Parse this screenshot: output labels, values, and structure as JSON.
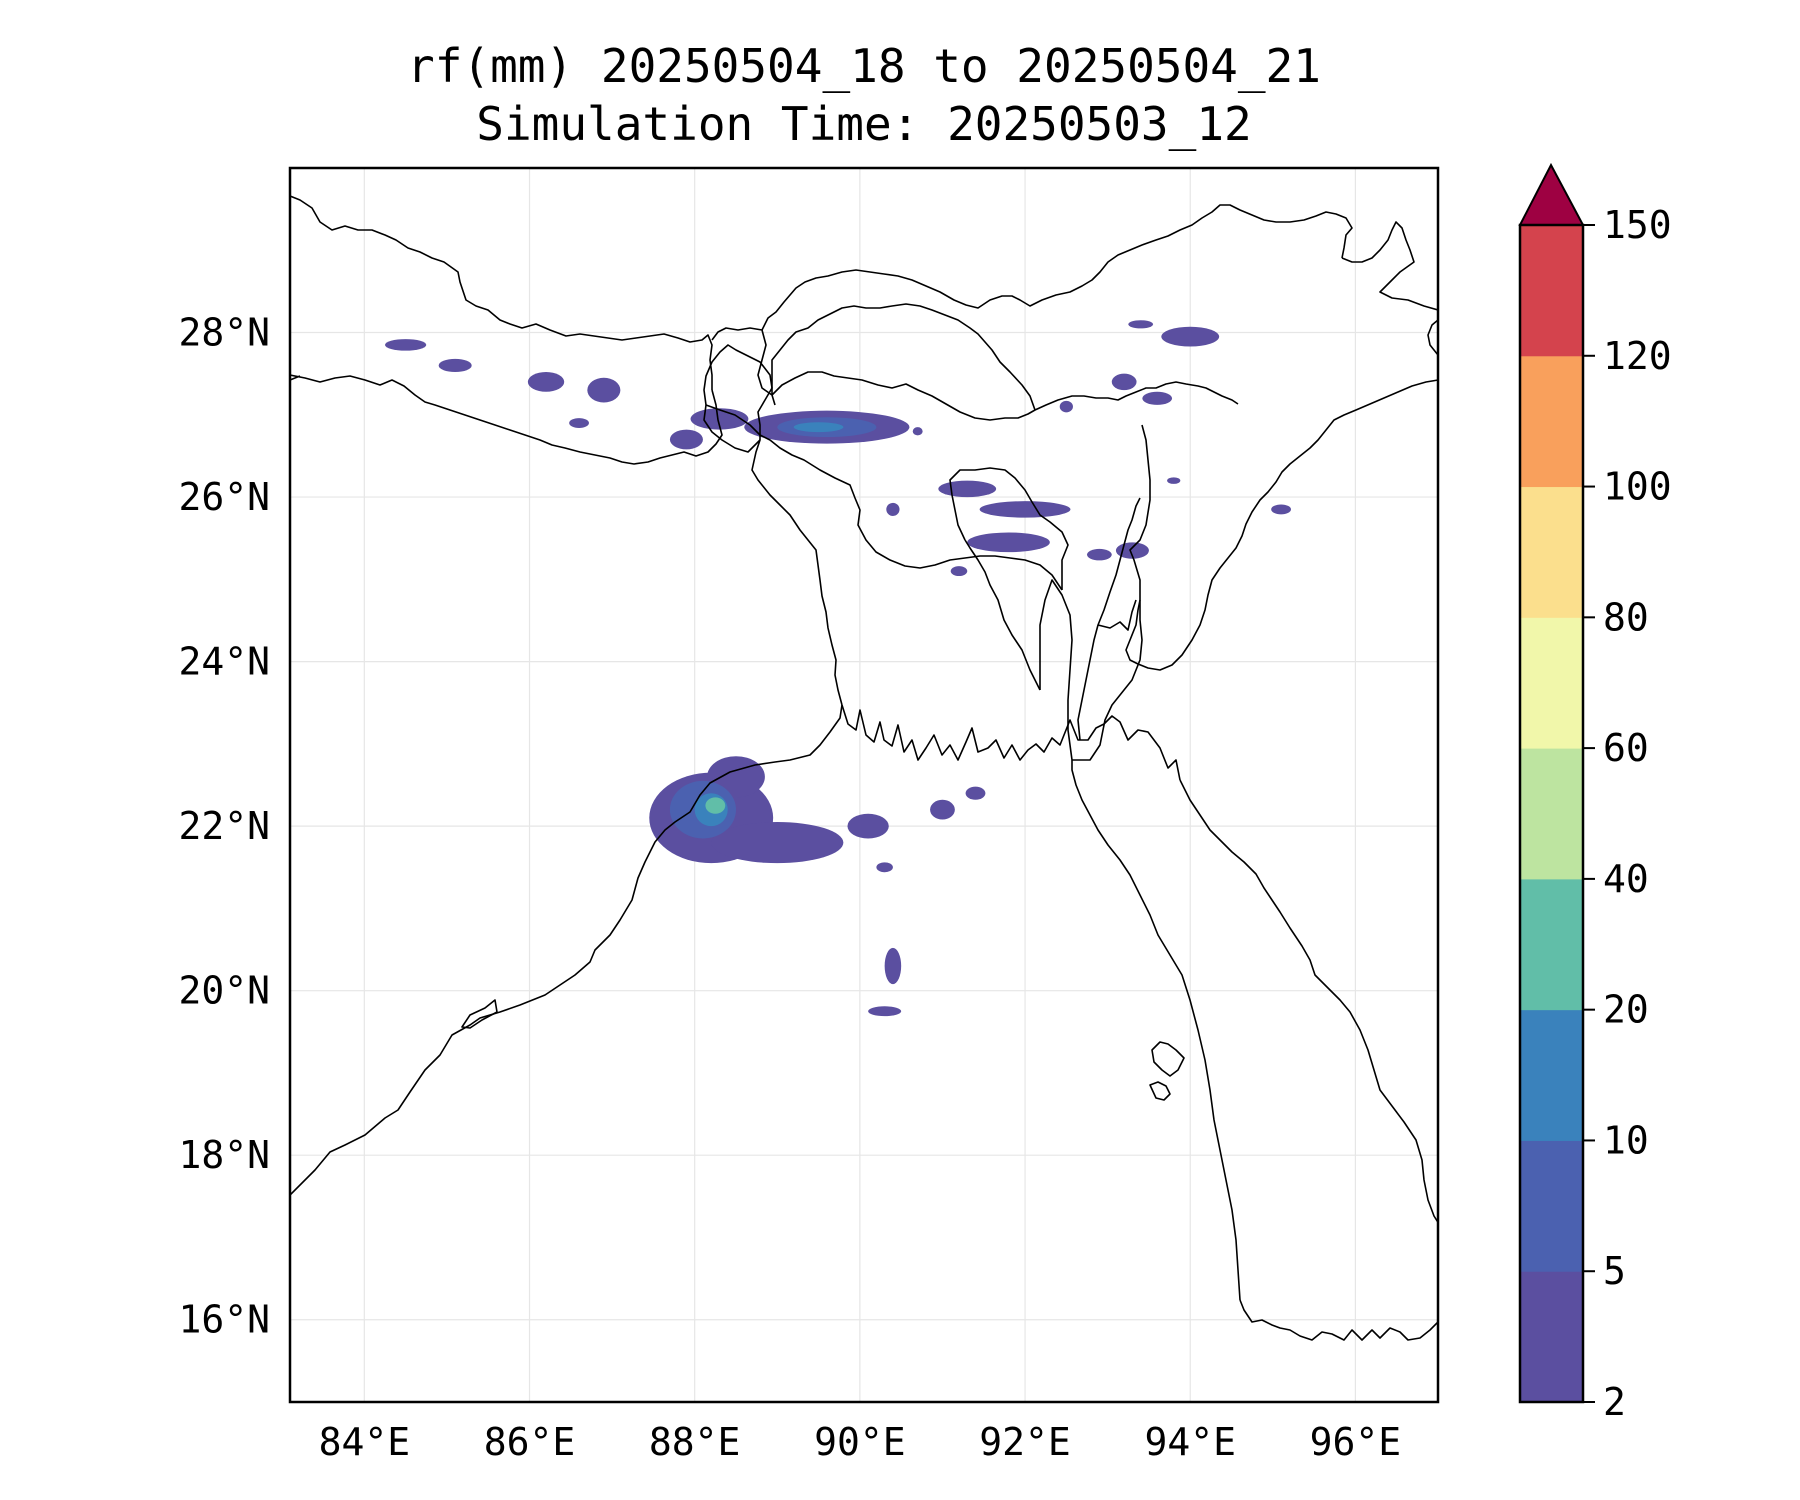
{
  "map": {
    "title": "rf(mm) 20250504_18 to 20250504_21",
    "subtitle": "Simulation Time: 20250503_12",
    "lon_range": [
      83.1,
      97.0
    ],
    "lat_range": [
      15.0,
      30.0
    ],
    "lon_ticks": [
      {
        "value": 84,
        "label": "84°E"
      },
      {
        "value": 86,
        "label": "86°E"
      },
      {
        "value": 88,
        "label": "88°E"
      },
      {
        "value": 90,
        "label": "90°E"
      },
      {
        "value": 92,
        "label": "92°E"
      },
      {
        "value": 94,
        "label": "94°E"
      },
      {
        "value": 96,
        "label": "96°E"
      }
    ],
    "lat_ticks": [
      {
        "value": 16,
        "label": "16°N"
      },
      {
        "value": 18,
        "label": "18°N"
      },
      {
        "value": 20,
        "label": "20°N"
      },
      {
        "value": 22,
        "label": "22°N"
      },
      {
        "value": 24,
        "label": "24°N"
      },
      {
        "value": 26,
        "label": "26°N"
      },
      {
        "value": 28,
        "label": "28°N"
      }
    ],
    "gridlines": true
  },
  "colorbar": {
    "levels": [
      2,
      5,
      10,
      20,
      40,
      60,
      80,
      100,
      120,
      150
    ],
    "tick_labels": [
      "2",
      "5",
      "10",
      "20",
      "40",
      "60",
      "80",
      "100",
      "120",
      "150"
    ],
    "colors": [
      "#5b4fa0",
      "#4b61b0",
      "#3a82bc",
      "#61bea8",
      "#bde4a0",
      "#f1f7aa",
      "#fbdf8d",
      "#f9a05c",
      "#d4434d"
    ],
    "extend_color": "#9e0142",
    "extend": "max",
    "orientation": "vertical",
    "placement": "right"
  },
  "colors": {
    "coastline": "#000000",
    "grid": "#e6e6e6"
  },
  "rain_cells": [
    {
      "lon": 88.2,
      "lat": 22.1,
      "level": 0,
      "rlon": 0.75,
      "rlat": 0.55
    },
    {
      "lon": 89.0,
      "lat": 21.8,
      "level": 0,
      "rlon": 0.8,
      "rlat": 0.25
    },
    {
      "lon": 88.5,
      "lat": 22.6,
      "level": 0,
      "rlon": 0.35,
      "rlat": 0.25
    },
    {
      "lon": 88.1,
      "lat": 22.2,
      "level": 1,
      "rlon": 0.4,
      "rlat": 0.35
    },
    {
      "lon": 88.2,
      "lat": 22.2,
      "level": 2,
      "rlon": 0.2,
      "rlat": 0.2
    },
    {
      "lon": 88.25,
      "lat": 22.25,
      "level": 3,
      "rlon": 0.12,
      "rlat": 0.1
    },
    {
      "lon": 90.1,
      "lat": 22.0,
      "level": 0,
      "rlon": 0.25,
      "rlat": 0.15
    },
    {
      "lon": 91.0,
      "lat": 22.2,
      "level": 0,
      "rlon": 0.15,
      "rlat": 0.12
    },
    {
      "lon": 91.4,
      "lat": 22.4,
      "level": 0,
      "rlon": 0.12,
      "rlat": 0.08
    },
    {
      "lon": 90.4,
      "lat": 20.3,
      "level": 0,
      "rlon": 0.1,
      "rlat": 0.22
    },
    {
      "lon": 90.3,
      "lat": 19.75,
      "level": 0,
      "rlon": 0.2,
      "rlat": 0.06
    },
    {
      "lon": 90.3,
      "lat": 21.5,
      "level": 0,
      "rlon": 0.1,
      "rlat": 0.06
    },
    {
      "lon": 89.6,
      "lat": 26.85,
      "level": 0,
      "rlon": 1.0,
      "rlat": 0.2
    },
    {
      "lon": 89.6,
      "lat": 26.85,
      "level": 1,
      "rlon": 0.6,
      "rlat": 0.12
    },
    {
      "lon": 89.5,
      "lat": 26.85,
      "level": 2,
      "rlon": 0.3,
      "rlat": 0.06
    },
    {
      "lon": 88.3,
      "lat": 26.95,
      "level": 0,
      "rlon": 0.35,
      "rlat": 0.13
    },
    {
      "lon": 87.9,
      "lat": 26.7,
      "level": 0,
      "rlon": 0.2,
      "rlat": 0.12
    },
    {
      "lon": 86.9,
      "lat": 27.3,
      "level": 0,
      "rlon": 0.2,
      "rlat": 0.15
    },
    {
      "lon": 86.2,
      "lat": 27.4,
      "level": 0,
      "rlon": 0.22,
      "rlat": 0.12
    },
    {
      "lon": 85.1,
      "lat": 27.6,
      "level": 0,
      "rlon": 0.2,
      "rlat": 0.08
    },
    {
      "lon": 84.5,
      "lat": 27.85,
      "level": 0,
      "rlon": 0.25,
      "rlat": 0.07
    },
    {
      "lon": 86.6,
      "lat": 26.9,
      "level": 0,
      "rlon": 0.12,
      "rlat": 0.06
    },
    {
      "lon": 91.3,
      "lat": 26.1,
      "level": 0,
      "rlon": 0.35,
      "rlat": 0.1
    },
    {
      "lon": 92.0,
      "lat": 25.85,
      "level": 0,
      "rlon": 0.55,
      "rlat": 0.1
    },
    {
      "lon": 91.8,
      "lat": 25.45,
      "level": 0,
      "rlon": 0.5,
      "rlat": 0.12
    },
    {
      "lon": 92.9,
      "lat": 25.3,
      "level": 0,
      "rlon": 0.15,
      "rlat": 0.07
    },
    {
      "lon": 93.3,
      "lat": 25.35,
      "level": 0,
      "rlon": 0.2,
      "rlat": 0.1
    },
    {
      "lon": 90.4,
      "lat": 25.85,
      "level": 0,
      "rlon": 0.08,
      "rlat": 0.08
    },
    {
      "lon": 91.2,
      "lat": 25.1,
      "level": 0,
      "rlon": 0.1,
      "rlat": 0.06
    },
    {
      "lon": 94.0,
      "lat": 27.95,
      "level": 0,
      "rlon": 0.35,
      "rlat": 0.12
    },
    {
      "lon": 93.2,
      "lat": 27.4,
      "level": 0,
      "rlon": 0.15,
      "rlat": 0.1
    },
    {
      "lon": 93.6,
      "lat": 27.2,
      "level": 0,
      "rlon": 0.18,
      "rlat": 0.08
    },
    {
      "lon": 93.4,
      "lat": 28.1,
      "level": 0,
      "rlon": 0.15,
      "rlat": 0.05
    },
    {
      "lon": 92.5,
      "lat": 27.1,
      "level": 0,
      "rlon": 0.08,
      "rlat": 0.07
    },
    {
      "lon": 95.1,
      "lat": 25.85,
      "level": 0,
      "rlon": 0.12,
      "rlat": 0.06
    },
    {
      "lon": 93.8,
      "lat": 26.2,
      "level": 0,
      "rlon": 0.08,
      "rlat": 0.04
    },
    {
      "lon": 90.7,
      "lat": 26.8,
      "level": 0,
      "rlon": 0.06,
      "rlat": 0.05
    }
  ]
}
